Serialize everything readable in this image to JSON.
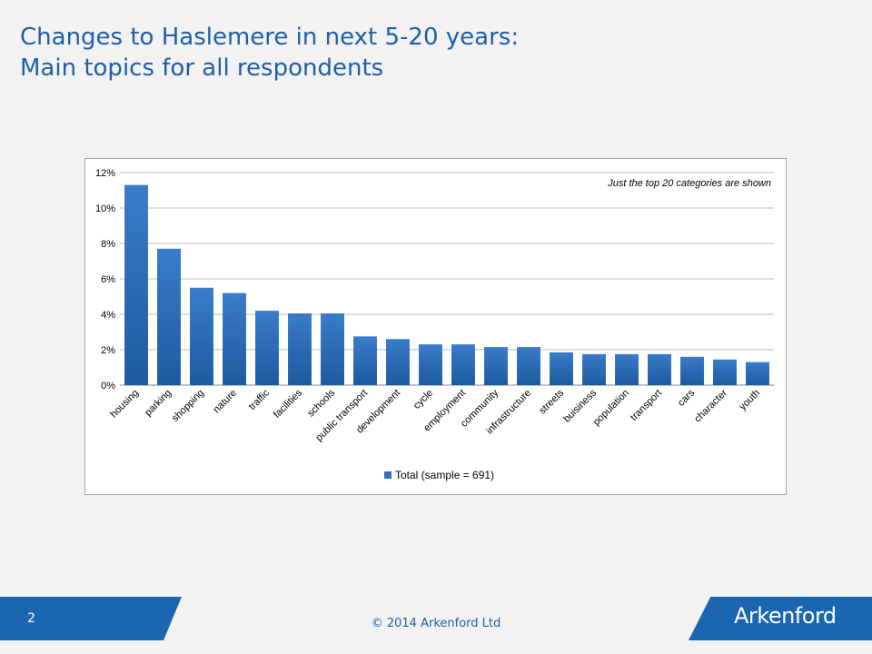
{
  "slide": {
    "title_line1": "Changes to Haslemere in next 5-20 years:",
    "title_line2": "Main topics for all respondents",
    "page_number": "2",
    "copyright": "© 2014 Arkenford Ltd",
    "logo": "Arkenford"
  },
  "colors": {
    "accent": "#1a66b0",
    "bar": "#2e6fbd",
    "title": "#1f5ea8"
  },
  "chart_data": {
    "type": "bar",
    "categories": [
      "housing",
      "parking",
      "shopping",
      "nature",
      "traffic",
      "facilities",
      "schools",
      "public transport",
      "development",
      "cycle",
      "employment",
      "community",
      "infrastructure",
      "streets",
      "buisiness",
      "population",
      "transport",
      "cars",
      "character",
      "youth"
    ],
    "series": [
      {
        "name": "Total (sample = 691)",
        "values": [
          11.3,
          7.7,
          5.5,
          5.2,
          4.2,
          4.05,
          4.05,
          2.75,
          2.6,
          2.3,
          2.3,
          2.15,
          2.15,
          1.85,
          1.75,
          1.75,
          1.75,
          1.6,
          1.45,
          1.3
        ]
      }
    ],
    "ylim": [
      0,
      12
    ],
    "yticks": [
      0,
      2,
      4,
      6,
      8,
      10,
      12
    ],
    "ytick_labels": [
      "0%",
      "2%",
      "4%",
      "6%",
      "8%",
      "10%",
      "12%"
    ],
    "annotation": "Just the top 20 categories are shown",
    "grid": true,
    "legend_position": "bottom"
  }
}
